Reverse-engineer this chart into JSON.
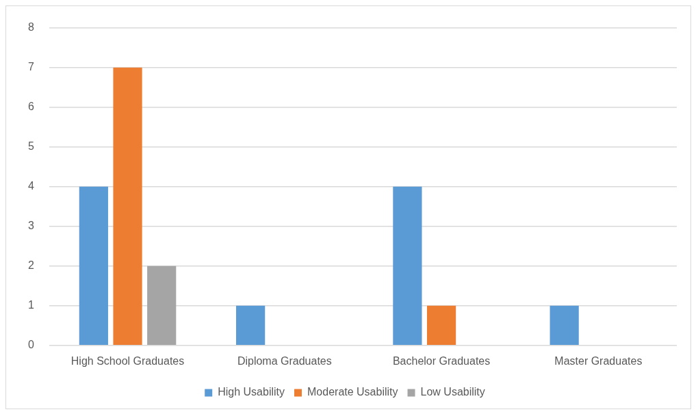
{
  "chart_data": {
    "type": "bar",
    "categories": [
      "High School Graduates",
      "Diploma Graduates",
      "Bachelor Graduates",
      "Master Graduates"
    ],
    "series": [
      {
        "name": "High Usability",
        "color": "#5b9bd5",
        "values": [
          4,
          1,
          4,
          1
        ]
      },
      {
        "name": "Moderate Usability",
        "color": "#ed7d31",
        "values": [
          7,
          0,
          1,
          0
        ]
      },
      {
        "name": "Low Usability",
        "color": "#a5a5a5",
        "values": [
          2,
          0,
          0,
          0
        ]
      }
    ],
    "ylim": [
      0,
      8
    ],
    "yticks": [
      0,
      1,
      2,
      3,
      4,
      5,
      6,
      7,
      8
    ],
    "grid": "y",
    "legend": "bottom"
  }
}
